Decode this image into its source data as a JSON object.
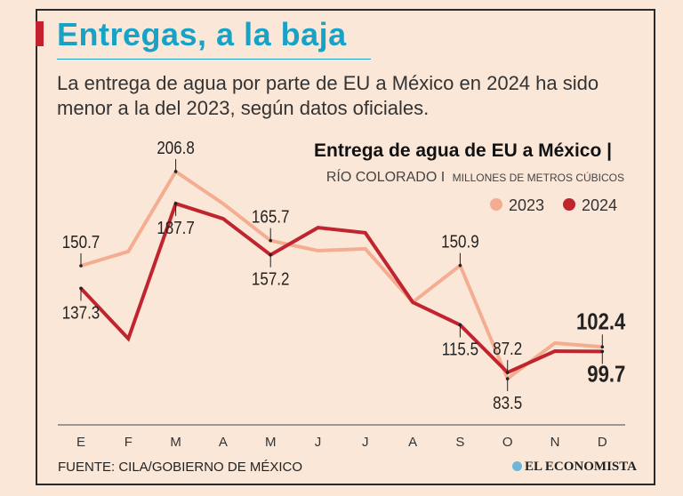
{
  "header": {
    "title": "Entregas, a la baja",
    "subtitle": "La entrega de agua por parte de EU a México en 2024 ha sido menor a la del 2023, según datos oficiales."
  },
  "footer": {
    "source": "FUENTE: CILA/GOBIERNO DE MÉXICO",
    "logo": "EL ECONOMISTA"
  },
  "colors": {
    "title": "#17a2c6",
    "accent": "#c4202e",
    "s2023": "#f4ad90",
    "s2024": "#c0252f"
  },
  "chart_data": {
    "type": "line",
    "title": "Entrega de agua de EU a México |",
    "subtitle_main": "RÍO COLORADO I",
    "subtitle_units": "MILLONES DE METROS CÚBICOS",
    "categories": [
      "E",
      "F",
      "M",
      "A",
      "M",
      "J",
      "J",
      "A",
      "S",
      "O",
      "N",
      "D"
    ],
    "legend_position": "top-right",
    "grid": false,
    "ylim": [
      60,
      215
    ],
    "series": [
      {
        "name": "2023",
        "color": "#f4ad90",
        "values": [
          150.7,
          159.2,
          206.8,
          187.7,
          165.7,
          159.7,
          160.8,
          129.0,
          150.9,
          83.5,
          104.7,
          102.4
        ],
        "labels": [
          {
            "index": 0,
            "text": "150.7",
            "pos": "above"
          },
          {
            "index": 2,
            "text": "206.8",
            "pos": "above"
          },
          {
            "index": 4,
            "text": "165.7",
            "pos": "above"
          },
          {
            "index": 8,
            "text": "150.9",
            "pos": "above"
          },
          {
            "index": 9,
            "text": "83.5",
            "pos": "below"
          },
          {
            "index": 11,
            "text": "102.4",
            "pos": "above",
            "bold": true
          }
        ]
      },
      {
        "name": "2024",
        "color": "#c0252f",
        "values": [
          137.3,
          107.3,
          187.7,
          178.7,
          157.2,
          173.4,
          170.3,
          129.0,
          115.5,
          87.2,
          99.9,
          99.7
        ],
        "labels": [
          {
            "index": 0,
            "text": "137.3",
            "pos": "below"
          },
          {
            "index": 2,
            "text": "187.7",
            "pos": "below"
          },
          {
            "index": 4,
            "text": "157.2",
            "pos": "below"
          },
          {
            "index": 8,
            "text": "115.5",
            "pos": "below"
          },
          {
            "index": 9,
            "text": "87.2",
            "pos": "above"
          },
          {
            "index": 11,
            "text": "99.7",
            "pos": "below",
            "bold": true
          }
        ]
      }
    ]
  }
}
